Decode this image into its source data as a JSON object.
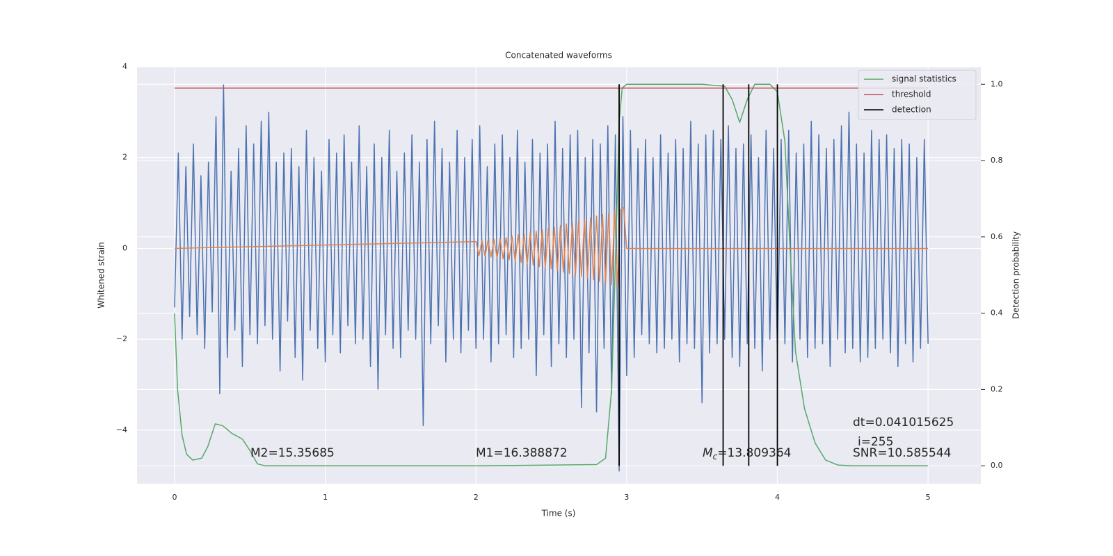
{
  "chart_data": {
    "type": "line",
    "title": "Concatenated waveforms",
    "xlabel": "Time (s)",
    "ylabel": "Whitened strain",
    "y2label": "Detection probability",
    "xlim": [
      -0.249,
      5.35
    ],
    "xticks": [
      0,
      1,
      2,
      3,
      4,
      5
    ],
    "ylim": [
      -5.18,
      4.0
    ],
    "yticks": [
      {
        "value": -4,
        "label": "−4"
      },
      {
        "value": -2,
        "label": "−2"
      },
      0,
      2,
      4
    ],
    "y2lim": [
      -0.047,
      1.046
    ],
    "y2ticks": [
      {
        "value": 0,
        "label": "0.0"
      },
      0.2,
      0.4,
      0.6,
      0.8,
      {
        "value": 1,
        "label": "1.0"
      }
    ],
    "grid": true,
    "legend": "upper right",
    "series": [
      {
        "color": "#4c72b0",
        "x": [
          0,
          0.025,
          0.05,
          0.075,
          0.1,
          0.125,
          0.15,
          0.175,
          0.2,
          0.225,
          0.25,
          0.275,
          0.3,
          0.325,
          0.35,
          0.375,
          0.4,
          0.425,
          0.45,
          0.475,
          0.5,
          0.525,
          0.55,
          0.575,
          0.6,
          0.625,
          0.65,
          0.675,
          0.7,
          0.725,
          0.75,
          0.775,
          0.8,
          0.825,
          0.85,
          0.875,
          0.9,
          0.925,
          0.95,
          0.975,
          1,
          1.025,
          1.05,
          1.075,
          1.1,
          1.125,
          1.15,
          1.175,
          1.2,
          1.225,
          1.25,
          1.275,
          1.3,
          1.325,
          1.35,
          1.375,
          1.4,
          1.425,
          1.45,
          1.475,
          1.5,
          1.525,
          1.55,
          1.575,
          1.6,
          1.625,
          1.65,
          1.675,
          1.7,
          1.725,
          1.75,
          1.775,
          1.8,
          1.825,
          1.85,
          1.875,
          1.9,
          1.925,
          1.95,
          1.975,
          2,
          2.025,
          2.05,
          2.075,
          2.1,
          2.125,
          2.15,
          2.175,
          2.2,
          2.225,
          2.25,
          2.275,
          2.3,
          2.325,
          2.35,
          2.375,
          2.4,
          2.425,
          2.45,
          2.475,
          2.5,
          2.525,
          2.55,
          2.575,
          2.6,
          2.625,
          2.65,
          2.675,
          2.7,
          2.725,
          2.75,
          2.775,
          2.8,
          2.825,
          2.85,
          2.875,
          2.9,
          2.925,
          2.95,
          2.975,
          3,
          3.025,
          3.05,
          3.075,
          3.1,
          3.125,
          3.15,
          3.175,
          3.2,
          3.225,
          3.25,
          3.275,
          3.3,
          3.325,
          3.35,
          3.375,
          3.4,
          3.425,
          3.45,
          3.475,
          3.5,
          3.525,
          3.55,
          3.575,
          3.6,
          3.625,
          3.65,
          3.675,
          3.7,
          3.725,
          3.75,
          3.775,
          3.8,
          3.825,
          3.85,
          3.875,
          3.9,
          3.925,
          3.95,
          3.975,
          4,
          4.025,
          4.05,
          4.075,
          4.1,
          4.125,
          4.15,
          4.175,
          4.2,
          4.225,
          4.25,
          4.275,
          4.3,
          4.325,
          4.35,
          4.375,
          4.4,
          4.425,
          4.45,
          4.475,
          4.5,
          4.525,
          4.55,
          4.575,
          4.6,
          4.625,
          4.65,
          4.675,
          4.7,
          4.725,
          4.75,
          4.775,
          4.8,
          4.825,
          4.85,
          4.875,
          4.9,
          4.925,
          4.95,
          4.975,
          5
        ],
        "values": [
          -1.3,
          2.1,
          -2.0,
          1.8,
          -1.5,
          2.3,
          -1.9,
          1.6,
          -2.2,
          1.9,
          -1.4,
          2.9,
          -3.2,
          3.6,
          -2.4,
          1.7,
          -1.8,
          2.2,
          -2.6,
          2.7,
          -1.9,
          2.3,
          -2.1,
          2.8,
          -1.7,
          3.0,
          -2.0,
          1.9,
          -2.7,
          2.1,
          -1.6,
          2.2,
          -2.4,
          1.8,
          -2.9,
          2.6,
          -1.8,
          2.0,
          -2.2,
          1.7,
          -2.5,
          2.4,
          -1.9,
          2.1,
          -2.3,
          2.5,
          -1.7,
          1.9,
          -2.1,
          2.7,
          -2.0,
          1.8,
          -2.6,
          2.3,
          -3.1,
          2.0,
          -1.9,
          2.6,
          -2.2,
          1.7,
          -2.4,
          2.1,
          -1.8,
          2.5,
          -2.0,
          1.9,
          -3.9,
          2.4,
          -2.1,
          2.8,
          -1.7,
          2.2,
          -2.5,
          1.9,
          -2.0,
          2.6,
          -2.3,
          2.0,
          -1.8,
          2.4,
          -2.2,
          2.7,
          -2.0,
          1.8,
          -2.5,
          2.3,
          -2.1,
          2.5,
          -1.9,
          2.0,
          -2.4,
          2.6,
          -2.2,
          1.9,
          -2.0,
          2.4,
          -2.8,
          2.1,
          -1.9,
          2.3,
          -2.6,
          2.8,
          -2.1,
          2.2,
          -2.4,
          2.5,
          -2.0,
          2.6,
          -3.5,
          2.0,
          -2.3,
          2.4,
          -3.6,
          2.3,
          -2.2,
          2.7,
          -3.2,
          2.5,
          -4.9,
          2.9,
          -2.8,
          2.6,
          -2.4,
          2.2,
          -1.9,
          2.4,
          -2.1,
          2.0,
          -2.3,
          2.5,
          -2.2,
          2.1,
          -2.0,
          2.4,
          -2.5,
          2.2,
          -2.1,
          2.8,
          -2.2,
          2.3,
          -3.4,
          2.5,
          -2.3,
          2.6,
          -2.1,
          2.4,
          -2.0,
          2.7,
          -2.4,
          2.2,
          -2.6,
          2.3,
          -2.1,
          2.5,
          -2.2,
          2.0,
          -2.7,
          2.6,
          -2.0,
          2.2,
          -2.3,
          2.4,
          -2.1,
          2.6,
          -2.5,
          2.1,
          -2.0,
          2.3,
          -2.4,
          2.8,
          -2.2,
          2.5,
          -2.1,
          2.2,
          -2.6,
          2.4,
          -2.0,
          2.7,
          -2.3,
          3.0,
          -2.2,
          2.3,
          -2.5,
          2.1,
          -2.4,
          2.6,
          -2.2,
          2.4,
          -2.0,
          2.5,
          -2.3,
          2.2,
          -2.6,
          2.4,
          -2.1,
          2.3,
          -2.5,
          2.0,
          -2.2,
          2.4,
          -2.1
        ]
      },
      {
        "color": "#dd8452",
        "x": [
          0,
          2,
          2.02,
          2.04,
          2.06,
          2.08,
          2.1,
          2.12,
          2.14,
          2.16,
          2.18,
          2.2,
          2.22,
          2.24,
          2.26,
          2.28,
          2.3,
          2.32,
          2.34,
          2.36,
          2.38,
          2.4,
          2.42,
          2.44,
          2.46,
          2.48,
          2.5,
          2.52,
          2.54,
          2.56,
          2.58,
          2.6,
          2.62,
          2.64,
          2.66,
          2.68,
          2.7,
          2.72,
          2.74,
          2.76,
          2.78,
          2.8,
          2.82,
          2.84,
          2.86,
          2.88,
          2.9,
          2.92,
          2.94,
          2.96,
          2.98,
          3,
          5
        ],
        "values": [
          0,
          0.15,
          -0.16,
          0.17,
          -0.17,
          0.18,
          -0.19,
          0.2,
          -0.21,
          0.22,
          -0.23,
          0.24,
          -0.25,
          0.27,
          -0.28,
          0.3,
          -0.31,
          0.32,
          -0.34,
          0.35,
          -0.37,
          0.38,
          -0.4,
          0.41,
          -0.42,
          0.44,
          -0.45,
          0.47,
          -0.49,
          0.5,
          -0.52,
          0.54,
          -0.55,
          0.57,
          -0.59,
          0.6,
          -0.62,
          0.64,
          -0.66,
          0.67,
          -0.69,
          0.71,
          -0.73,
          0.75,
          -0.76,
          0.78,
          -0.8,
          0.82,
          -0.84,
          0.86,
          0.9,
          0,
          0
        ]
      },
      {
        "name": "signal statistics",
        "color": "#55a868",
        "axis": "y2",
        "x": [
          0,
          0.02,
          0.05,
          0.08,
          0.12,
          0.18,
          0.22,
          0.27,
          0.32,
          0.38,
          0.45,
          0.5,
          0.55,
          0.6,
          1,
          2,
          2.8,
          2.86,
          2.9,
          2.93,
          2.95,
          2.97,
          3,
          3.5,
          3.65,
          3.7,
          3.75,
          3.8,
          3.85,
          3.95,
          4,
          4.05,
          4.08,
          4.12,
          4.18,
          4.25,
          4.32,
          4.4,
          4.5,
          5
        ],
        "values": [
          0.4,
          0.2,
          0.08,
          0.03,
          0.015,
          0.02,
          0.05,
          0.11,
          0.105,
          0.085,
          0.07,
          0.04,
          0.005,
          0,
          0,
          0,
          0.003,
          0.02,
          0.2,
          0.6,
          0.9,
          0.99,
          1.0,
          1.0,
          0.995,
          0.96,
          0.9,
          0.96,
          1.0,
          1.0,
          0.98,
          0.85,
          0.6,
          0.3,
          0.15,
          0.06,
          0.015,
          0.002,
          0,
          0
        ]
      },
      {
        "name": "threshold",
        "color": "#c44e52",
        "axis": "y2",
        "x": [
          0,
          5
        ],
        "values": [
          0.99,
          0.99
        ]
      }
    ],
    "detections": {
      "name": "detection",
      "color": "#000000",
      "x": [
        2.95,
        3.64,
        3.81,
        4.0
      ],
      "ymin": 0,
      "ymax": 1
    },
    "annotations": [
      {
        "text": "M2=15.35685"
      },
      {
        "text": "M1=16.388872"
      },
      {
        "symbol": "M",
        "subscript": "c",
        "text": "=13.809364"
      },
      {
        "text": "dt=0.041015625"
      },
      {
        "text": "i=255"
      },
      {
        "text": "SNR=10.585544"
      }
    ]
  }
}
